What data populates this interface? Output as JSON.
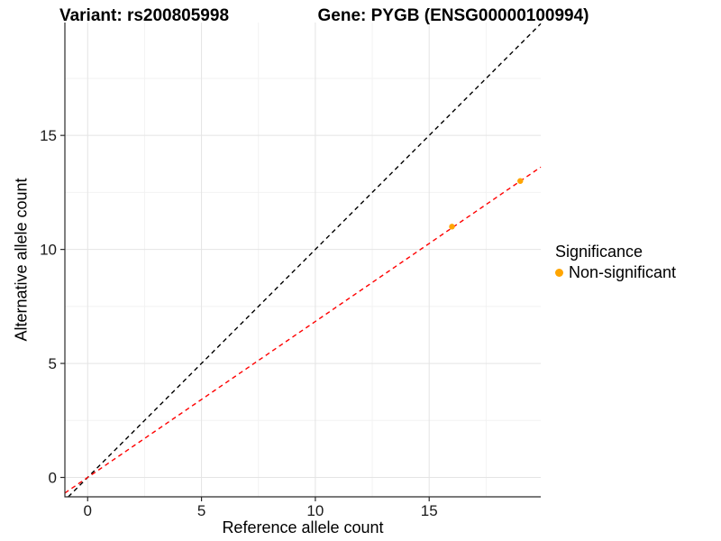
{
  "titles": {
    "variant": "Variant: rs200805998",
    "gene": "Gene: PYGB (ENSG00000100994)"
  },
  "legend": {
    "title": "Significance",
    "items": [
      {
        "label": "Non-significant",
        "color": "#FFA500"
      }
    ]
  },
  "chart_data": {
    "type": "scatter",
    "title_left": "Variant: rs200805998",
    "title_right": "Gene: PYGB (ENSG00000100994)",
    "xlabel": "Reference allele count",
    "ylabel": "Alternative allele count",
    "xlim": [
      -1,
      19.9
    ],
    "ylim": [
      -0.85,
      19.95
    ],
    "x_major_ticks": [
      0,
      5,
      10,
      15
    ],
    "y_major_ticks": [
      0,
      5,
      10,
      15
    ],
    "x_minor_ticks": [
      2.5,
      7.5,
      12.5,
      17.5
    ],
    "y_minor_ticks": [
      2.5,
      7.5,
      12.5,
      17.5
    ],
    "grid": true,
    "legend_position": "right",
    "series": [
      {
        "name": "Non-significant",
        "color": "#FFA500",
        "points": [
          {
            "x": 16,
            "y": 11
          },
          {
            "x": 19,
            "y": 13
          }
        ]
      }
    ],
    "lines": [
      {
        "name": "identity-line",
        "slope": 1,
        "intercept": 0,
        "color": "#000000",
        "style": "dashed"
      },
      {
        "name": "fitted-line",
        "slope": 0.684,
        "intercept": 0,
        "color": "#FF0000",
        "style": "dashed"
      }
    ],
    "colors": {
      "major_grid": "#E4E4E4",
      "minor_grid": "#F2F2F2",
      "axis_line": "#2b2b2b",
      "tick_label": "#1a1a1a"
    }
  }
}
